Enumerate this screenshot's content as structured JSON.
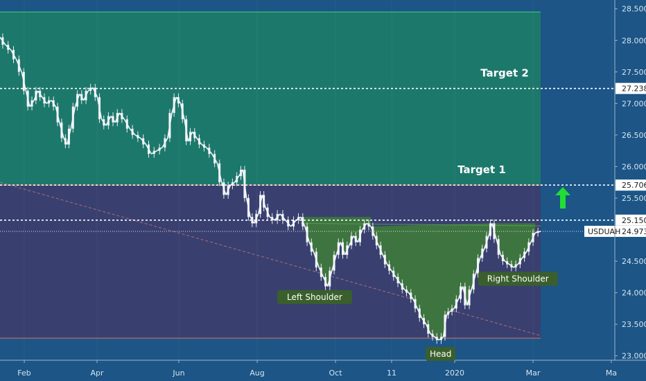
{
  "chart_data": {
    "type": "candlestick",
    "symbol": "USDUAH",
    "last_price": 24.973,
    "y_axis": {
      "min": 22.93,
      "max": 28.64,
      "ticks": [
        "28.500",
        "28.000",
        "27.500",
        "27.000",
        "26.500",
        "26.000",
        "25.500",
        "25.000",
        "24.500",
        "24.000",
        "23.500",
        "23.000"
      ]
    },
    "x_axis": {
      "labels": [
        "Feb",
        "Apr",
        "Jun",
        "Aug",
        "Oct",
        "11",
        "2020",
        "Mar",
        "Ma"
      ]
    },
    "price_levels": [
      {
        "value": 27.238,
        "label": "27.238",
        "style": "dotted",
        "color": "#ffffff"
      },
      {
        "value": 25.706,
        "label": "25.706",
        "style": "dotted",
        "color": "#ffffff"
      },
      {
        "value": 25.15,
        "label": "25.150",
        "style": "dotted",
        "color": "#ffffff"
      },
      {
        "value": 24.973,
        "label": "24.973",
        "style": "current",
        "color": "#ffffff"
      }
    ],
    "zones": [
      {
        "from": 25.706,
        "to": 28.45,
        "color": "#1e7a6a"
      },
      {
        "from": 23.28,
        "to": 25.706,
        "color": "#3b3f6e"
      }
    ],
    "targets": [
      {
        "label": "Target 2",
        "value": 27.238
      },
      {
        "label": "Target 1",
        "value": 25.706
      }
    ],
    "pattern": {
      "name": "inverse head and shoulders",
      "labels": [
        {
          "text": "Left Shoulder",
          "t": 0.582,
          "v": 23.93
        },
        {
          "text": "Head",
          "t": 0.815,
          "v": 23.03
        },
        {
          "text": "Right Shoulder",
          "t": 0.958,
          "v": 24.22
        }
      ]
    },
    "series": [
      {
        "t": 0.0,
        "v": 28.05
      },
      {
        "t": 0.01,
        "v": 27.93
      },
      {
        "t": 0.02,
        "v": 27.85
      },
      {
        "t": 0.03,
        "v": 27.7
      },
      {
        "t": 0.04,
        "v": 27.5
      },
      {
        "t": 0.048,
        "v": 27.2
      },
      {
        "t": 0.055,
        "v": 26.95
      },
      {
        "t": 0.063,
        "v": 27.05
      },
      {
        "t": 0.07,
        "v": 27.2
      },
      {
        "t": 0.078,
        "v": 27.1
      },
      {
        "t": 0.086,
        "v": 27.0
      },
      {
        "t": 0.095,
        "v": 27.05
      },
      {
        "t": 0.103,
        "v": 26.95
      },
      {
        "t": 0.11,
        "v": 26.7
      },
      {
        "t": 0.118,
        "v": 26.45
      },
      {
        "t": 0.124,
        "v": 26.35
      },
      {
        "t": 0.131,
        "v": 26.6
      },
      {
        "t": 0.139,
        "v": 26.95
      },
      {
        "t": 0.147,
        "v": 27.15
      },
      {
        "t": 0.155,
        "v": 27.05
      },
      {
        "t": 0.163,
        "v": 27.2
      },
      {
        "t": 0.172,
        "v": 27.25
      },
      {
        "t": 0.18,
        "v": 27.1
      },
      {
        "t": 0.188,
        "v": 26.75
      },
      {
        "t": 0.196,
        "v": 26.65
      },
      {
        "t": 0.205,
        "v": 26.8
      },
      {
        "t": 0.213,
        "v": 26.7
      },
      {
        "t": 0.221,
        "v": 26.85
      },
      {
        "t": 0.23,
        "v": 26.75
      },
      {
        "t": 0.24,
        "v": 26.6
      },
      {
        "t": 0.25,
        "v": 26.5
      },
      {
        "t": 0.26,
        "v": 26.45
      },
      {
        "t": 0.27,
        "v": 26.35
      },
      {
        "t": 0.28,
        "v": 26.2
      },
      {
        "t": 0.29,
        "v": 26.25
      },
      {
        "t": 0.3,
        "v": 26.3
      },
      {
        "t": 0.31,
        "v": 26.45
      },
      {
        "t": 0.318,
        "v": 26.85
      },
      {
        "t": 0.326,
        "v": 27.1
      },
      {
        "t": 0.334,
        "v": 27.0
      },
      {
        "t": 0.341,
        "v": 26.75
      },
      {
        "t": 0.348,
        "v": 26.4
      },
      {
        "t": 0.356,
        "v": 26.55
      },
      {
        "t": 0.364,
        "v": 26.45
      },
      {
        "t": 0.373,
        "v": 26.35
      },
      {
        "t": 0.382,
        "v": 26.3
      },
      {
        "t": 0.392,
        "v": 26.2
      },
      {
        "t": 0.402,
        "v": 26.05
      },
      {
        "t": 0.41,
        "v": 25.75
      },
      {
        "t": 0.418,
        "v": 25.55
      },
      {
        "t": 0.426,
        "v": 25.7
      },
      {
        "t": 0.434,
        "v": 25.75
      },
      {
        "t": 0.442,
        "v": 25.85
      },
      {
        "t": 0.449,
        "v": 25.95
      },
      {
        "t": 0.456,
        "v": 25.5
      },
      {
        "t": 0.463,
        "v": 25.2
      },
      {
        "t": 0.47,
        "v": 25.1
      },
      {
        "t": 0.478,
        "v": 25.25
      },
      {
        "t": 0.485,
        "v": 25.55
      },
      {
        "t": 0.491,
        "v": 25.35
      },
      {
        "t": 0.499,
        "v": 25.2
      },
      {
        "t": 0.508,
        "v": 25.15
      },
      {
        "t": 0.518,
        "v": 25.25
      },
      {
        "t": 0.528,
        "v": 25.15
      },
      {
        "t": 0.538,
        "v": 25.05
      },
      {
        "t": 0.548,
        "v": 25.15
      },
      {
        "t": 0.556,
        "v": 25.2
      },
      {
        "t": 0.564,
        "v": 25.05
      },
      {
        "t": 0.572,
        "v": 24.8
      },
      {
        "t": 0.58,
        "v": 24.65
      },
      {
        "t": 0.59,
        "v": 24.4
      },
      {
        "t": 0.598,
        "v": 24.25
      },
      {
        "t": 0.606,
        "v": 24.1
      },
      {
        "t": 0.614,
        "v": 24.35
      },
      {
        "t": 0.622,
        "v": 24.6
      },
      {
        "t": 0.63,
        "v": 24.8
      },
      {
        "t": 0.638,
        "v": 24.6
      },
      {
        "t": 0.646,
        "v": 24.75
      },
      {
        "t": 0.654,
        "v": 24.9
      },
      {
        "t": 0.662,
        "v": 24.8
      },
      {
        "t": 0.67,
        "v": 25.0
      },
      {
        "t": 0.678,
        "v": 25.1
      },
      {
        "t": 0.686,
        "v": 25.05
      },
      {
        "t": 0.693,
        "v": 24.9
      },
      {
        "t": 0.7,
        "v": 24.75
      },
      {
        "t": 0.708,
        "v": 24.6
      },
      {
        "t": 0.716,
        "v": 24.45
      },
      {
        "t": 0.724,
        "v": 24.35
      },
      {
        "t": 0.732,
        "v": 24.25
      },
      {
        "t": 0.74,
        "v": 24.15
      },
      {
        "t": 0.748,
        "v": 24.05
      },
      {
        "t": 0.756,
        "v": 24.0
      },
      {
        "t": 0.764,
        "v": 23.9
      },
      {
        "t": 0.772,
        "v": 23.75
      },
      {
        "t": 0.78,
        "v": 23.6
      },
      {
        "t": 0.788,
        "v": 23.5
      },
      {
        "t": 0.796,
        "v": 23.35
      },
      {
        "t": 0.804,
        "v": 23.3
      },
      {
        "t": 0.812,
        "v": 23.25
      },
      {
        "t": 0.82,
        "v": 23.3
      },
      {
        "t": 0.826,
        "v": 23.65
      },
      {
        "t": 0.832,
        "v": 23.7
      },
      {
        "t": 0.84,
        "v": 23.75
      },
      {
        "t": 0.848,
        "v": 23.9
      },
      {
        "t": 0.856,
        "v": 24.1
      },
      {
        "t": 0.864,
        "v": 23.8
      },
      {
        "t": 0.872,
        "v": 24.05
      },
      {
        "t": 0.88,
        "v": 24.3
      },
      {
        "t": 0.888,
        "v": 24.55
      },
      {
        "t": 0.896,
        "v": 24.7
      },
      {
        "t": 0.904,
        "v": 24.9
      },
      {
        "t": 0.91,
        "v": 25.1
      },
      {
        "t": 0.918,
        "v": 24.85
      },
      {
        "t": 0.926,
        "v": 24.6
      },
      {
        "t": 0.934,
        "v": 24.5
      },
      {
        "t": 0.942,
        "v": 24.45
      },
      {
        "t": 0.95,
        "v": 24.4
      },
      {
        "t": 0.958,
        "v": 24.45
      },
      {
        "t": 0.966,
        "v": 24.55
      },
      {
        "t": 0.974,
        "v": 24.65
      },
      {
        "t": 0.982,
        "v": 24.8
      },
      {
        "t": 0.99,
        "v": 24.95
      },
      {
        "t": 1.0,
        "v": 24.973
      }
    ]
  }
}
